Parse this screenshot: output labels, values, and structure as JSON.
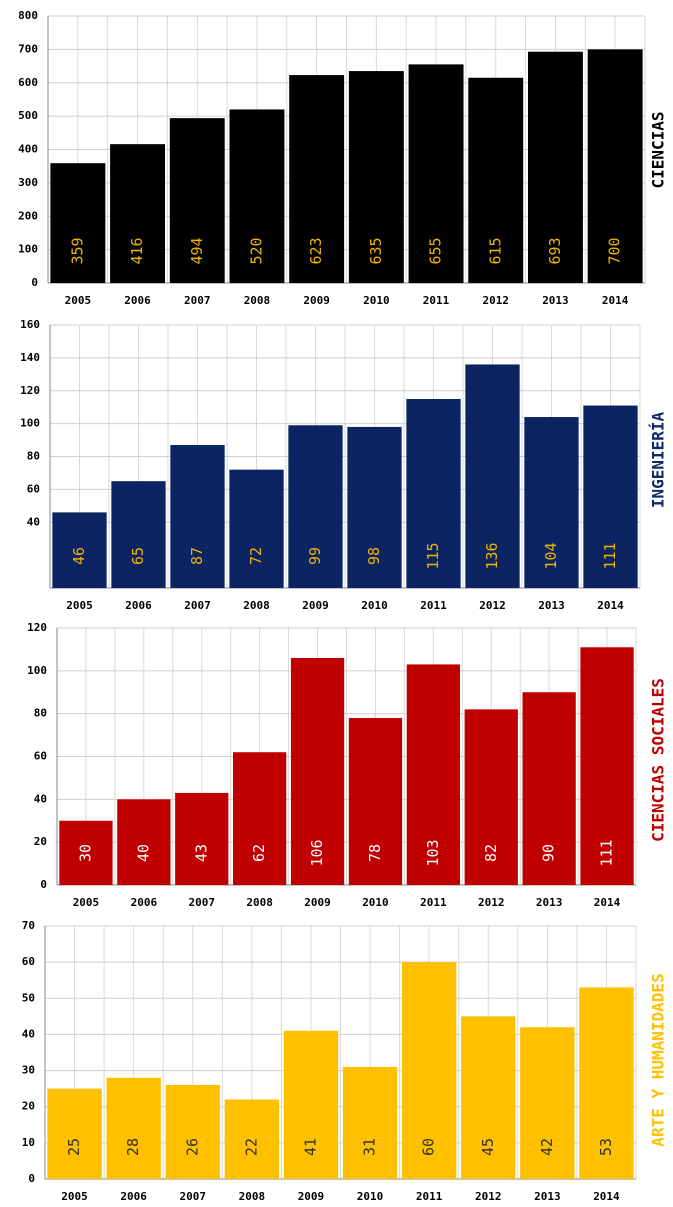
{
  "chart_data": [
    {
      "type": "bar",
      "title": "CIENCIAS",
      "title_color": "#000000",
      "categories": [
        "2005",
        "2006",
        "2007",
        "2008",
        "2009",
        "2010",
        "2011",
        "2012",
        "2013",
        "2014"
      ],
      "values": [
        359,
        416,
        494,
        520,
        623,
        635,
        655,
        615,
        693,
        700
      ],
      "color": "#000000",
      "value_label_color": "#f0b400",
      "ylim": [
        0,
        800
      ],
      "yticks": [
        0,
        100,
        200,
        300,
        400,
        500,
        600,
        700,
        800
      ],
      "grid": true
    },
    {
      "type": "bar",
      "title": "INGENIERÍA",
      "title_color": "#0d2a6b",
      "categories": [
        "2005",
        "2006",
        "2007",
        "2008",
        "2009",
        "2010",
        "2011",
        "2012",
        "2013",
        "2014"
      ],
      "values": [
        46,
        65,
        87,
        72,
        99,
        98,
        115,
        136,
        104,
        111
      ],
      "color": "#0c2461",
      "value_label_color": "#f0b400",
      "ylim": [
        0,
        160
      ],
      "yticks": [
        40,
        60,
        80,
        100,
        120,
        140,
        160
      ],
      "grid": true
    },
    {
      "type": "bar",
      "title": "CIENCIAS SOCIALES",
      "title_color": "#c00000",
      "categories": [
        "2005",
        "2006",
        "2007",
        "2008",
        "2009",
        "2010",
        "2011",
        "2012",
        "2013",
        "2014"
      ],
      "values": [
        30,
        40,
        43,
        62,
        106,
        78,
        103,
        82,
        90,
        111
      ],
      "color": "#c00000",
      "value_label_color": "#ffffff",
      "ylim": [
        0,
        120
      ],
      "yticks": [
        0,
        20,
        40,
        60,
        80,
        100,
        120
      ],
      "grid": true
    },
    {
      "type": "bar",
      "title": "ARTE Y HUMANIDADES",
      "title_color": "#ffc000",
      "categories": [
        "2005",
        "2006",
        "2007",
        "2008",
        "2009",
        "2010",
        "2011",
        "2012",
        "2013",
        "2014"
      ],
      "values": [
        25,
        28,
        26,
        22,
        41,
        31,
        60,
        45,
        42,
        53
      ],
      "color": "#ffc000",
      "value_label_color": "#333333",
      "ylim": [
        0,
        70
      ],
      "yticks": [
        0,
        10,
        20,
        30,
        40,
        50,
        60,
        70
      ],
      "grid": true
    }
  ]
}
